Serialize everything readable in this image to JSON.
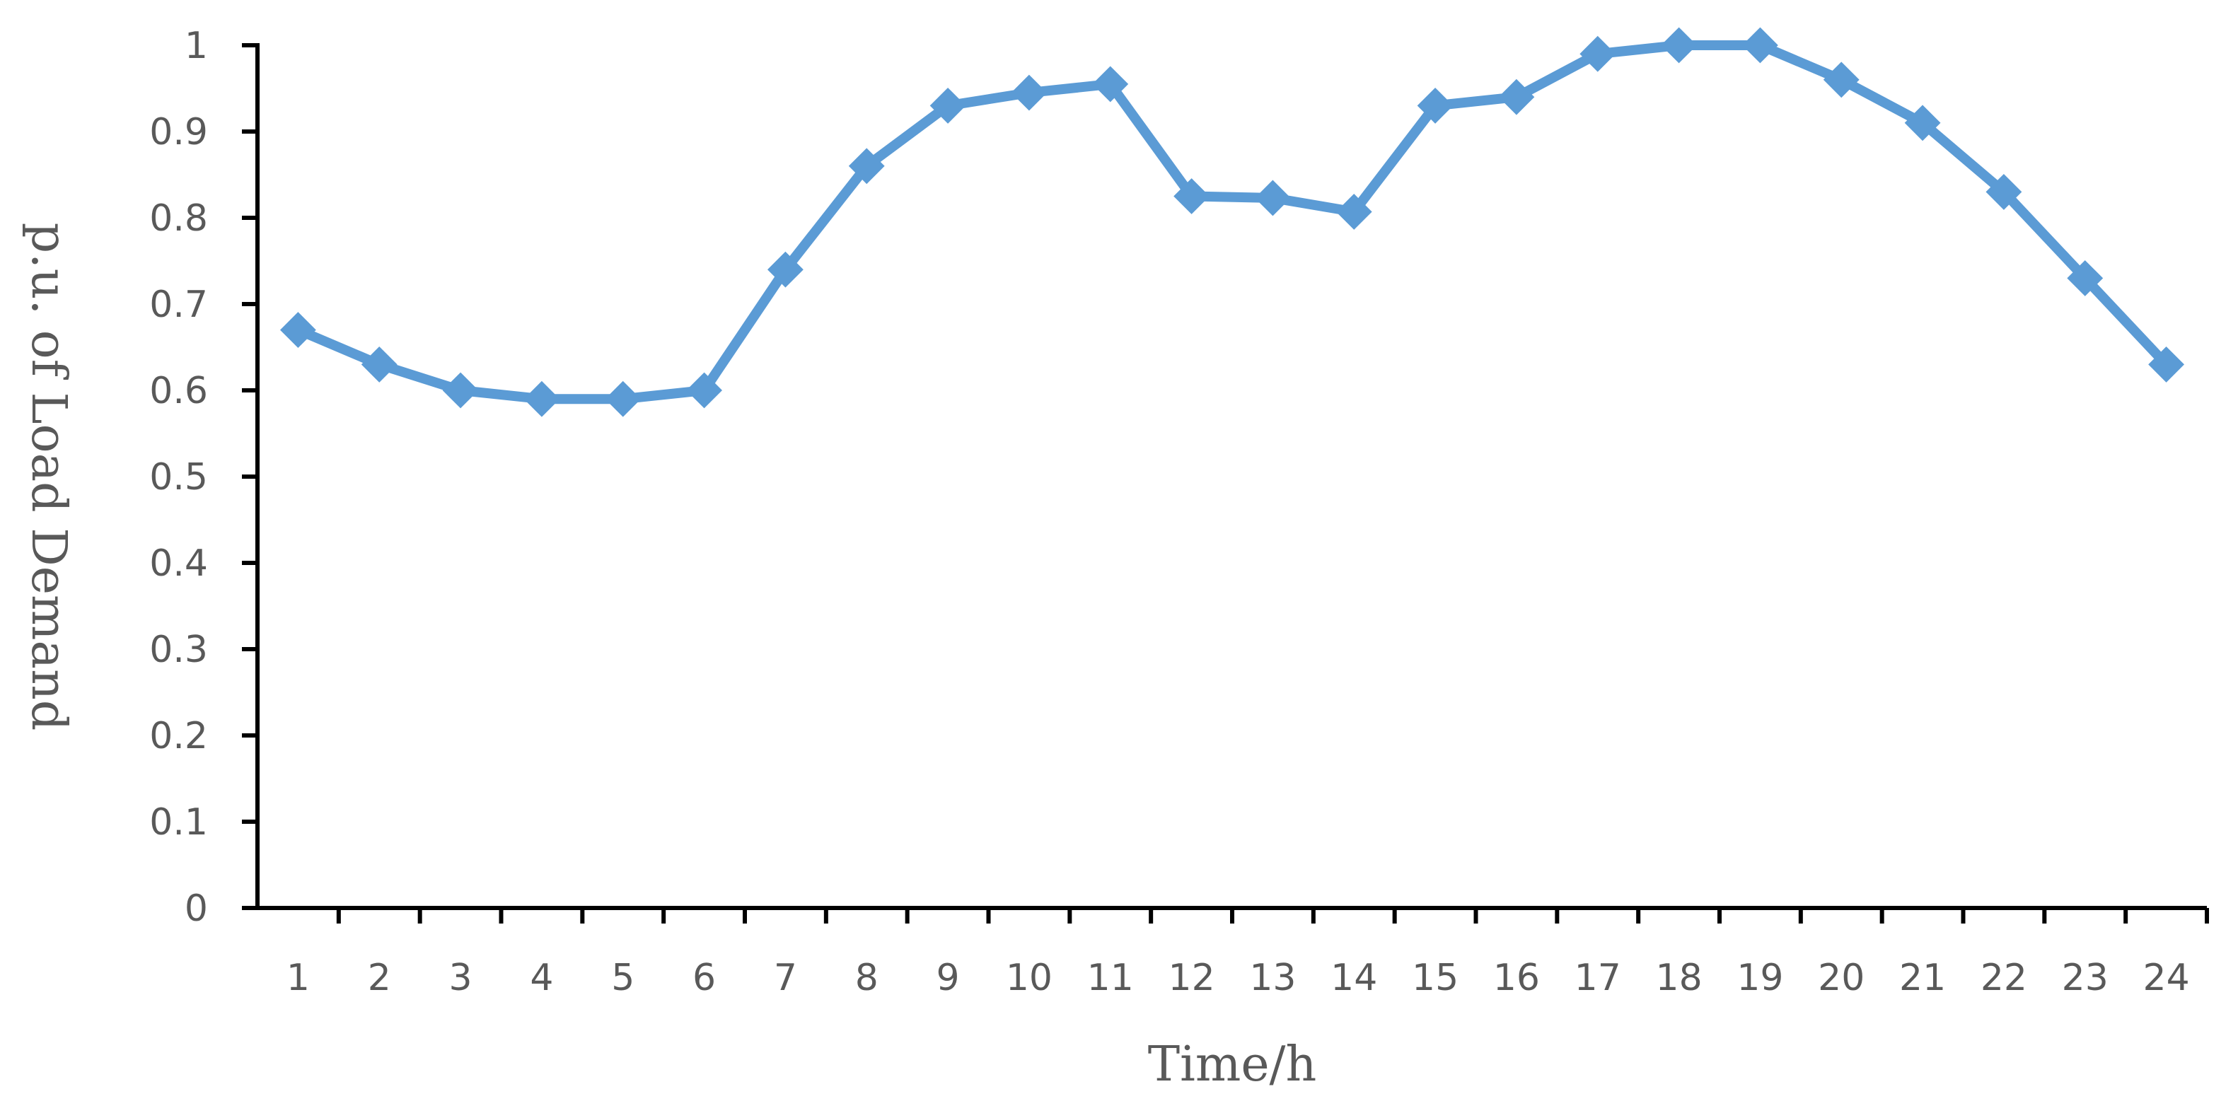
{
  "chart_data": {
    "type": "line",
    "title": "",
    "xlabel": "Time/h",
    "ylabel": "p.u. of Load Demand",
    "categories": [
      "1",
      "2",
      "3",
      "4",
      "5",
      "6",
      "7",
      "8",
      "9",
      "10",
      "11",
      "12",
      "13",
      "14",
      "15",
      "16",
      "17",
      "18",
      "19",
      "20",
      "21",
      "22",
      "23",
      "24"
    ],
    "series": [
      {
        "values": [
          0.67,
          0.63,
          0.6,
          0.59,
          0.59,
          0.6,
          0.74,
          0.86,
          0.93,
          0.945,
          0.955,
          0.825,
          0.823,
          0.807,
          0.93,
          0.94,
          0.99,
          1.0,
          1.0,
          0.96,
          0.91,
          0.83,
          0.73,
          0.63
        ],
        "color": "#5B9BD5"
      }
    ],
    "ylim": [
      0,
      1
    ],
    "yticks": [
      "0",
      "0.1",
      "0.2",
      "0.3",
      "0.4",
      "0.5",
      "0.6",
      "0.7",
      "0.8",
      "0.9",
      "1"
    ],
    "grid": false,
    "marker": "diamond",
    "axis_color": "#000000",
    "text_color": "#595959"
  }
}
